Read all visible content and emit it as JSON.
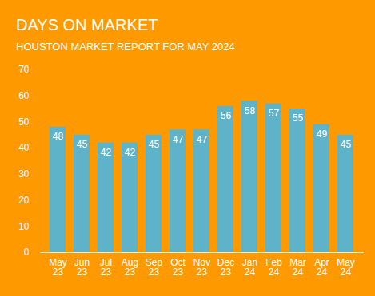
{
  "chart_data": {
    "type": "bar",
    "title": "DAYS ON MARKET",
    "subtitle": "HOUSTON MARKET REPORT FOR MAY 2024",
    "categories": [
      "May 23",
      "Jun 23",
      "Jul 23",
      "Aug 23",
      "Sep 23",
      "Oct 23",
      "Nov 23",
      "Dec 23",
      "Jan 24",
      "Feb 24",
      "Mar 24",
      "Apr 24",
      "May 24"
    ],
    "values": [
      48,
      45,
      42,
      42,
      45,
      47,
      47,
      56,
      58,
      57,
      55,
      49,
      45
    ],
    "color": "#5fb3c8",
    "ylim": [
      0,
      70
    ],
    "yticks": [
      0,
      10,
      20,
      30,
      40,
      50,
      60,
      70
    ],
    "grid": false,
    "data_labels": true
  }
}
